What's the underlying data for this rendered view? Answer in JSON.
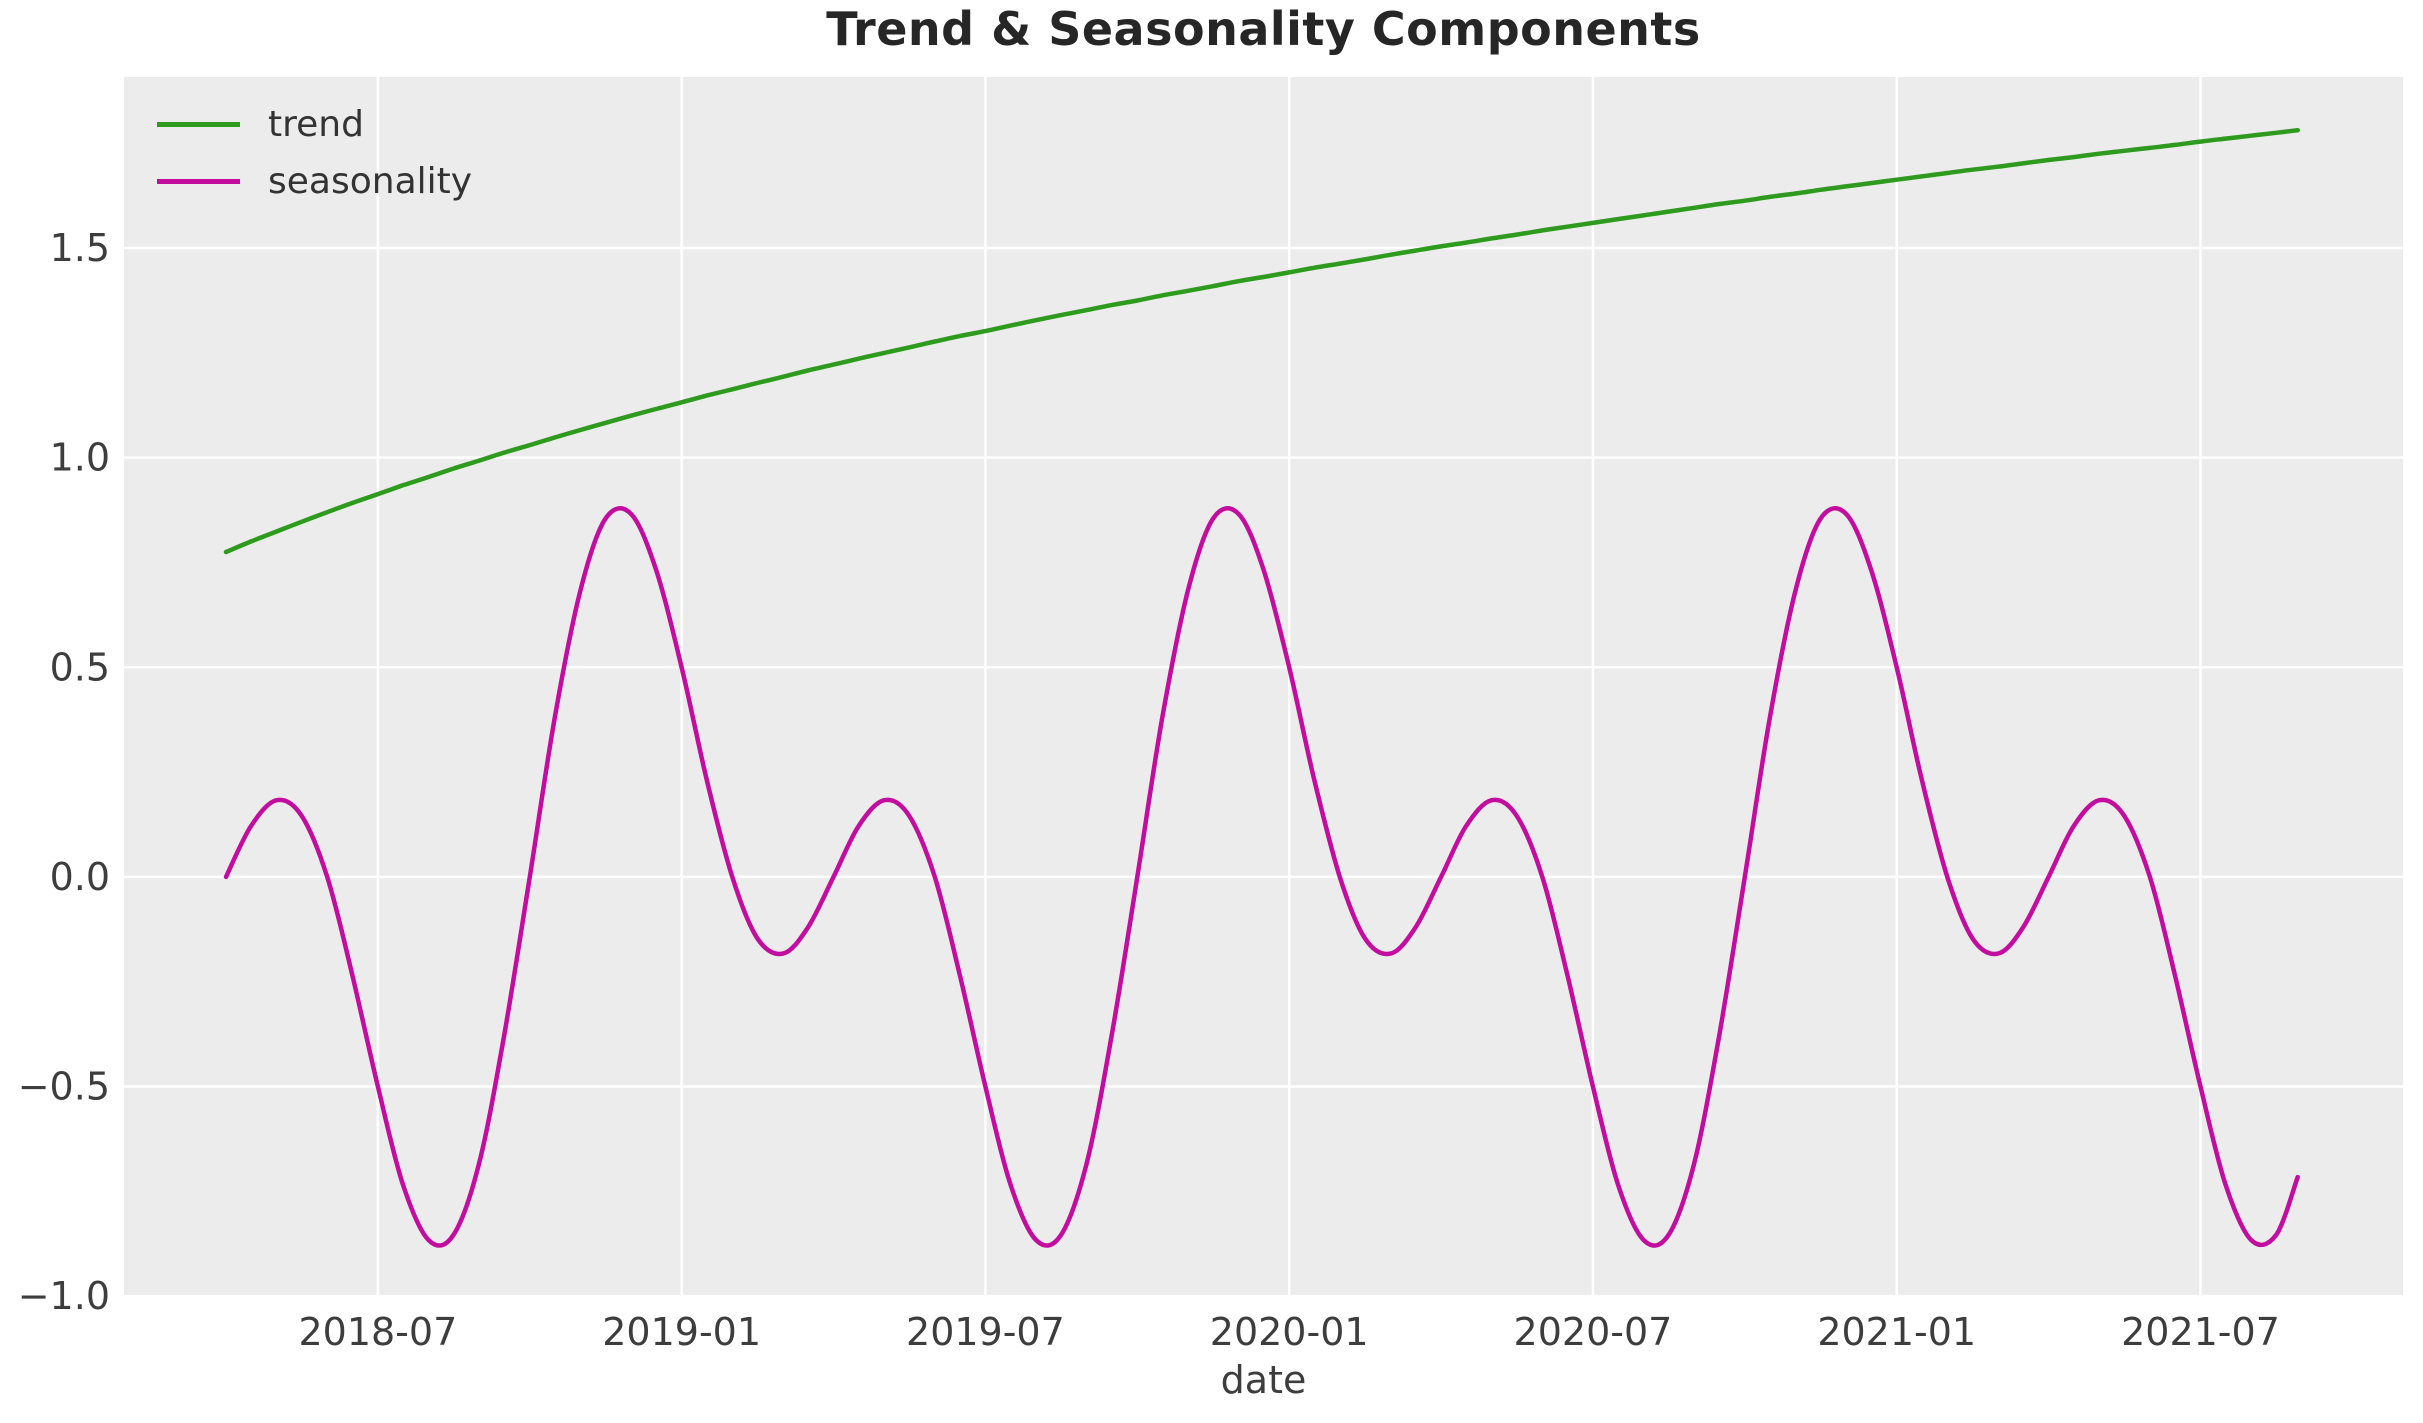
{
  "title": "Trend & Seasonality Components",
  "xlabel": "date",
  "colors": {
    "trend": "#2E9B1E",
    "seasonality": "#C20D9E",
    "axes_background": "#ECECEC",
    "gridline": "#FFFFFF",
    "tick_text": "#3D3D3D",
    "title_text": "#262626",
    "figure_background": "#FFFFFF"
  },
  "legend": {
    "position": "upper left",
    "items": [
      {
        "label": "trend",
        "color": "#2E9B1E"
      },
      {
        "label": "seasonality",
        "color": "#C20D9E"
      }
    ]
  },
  "chart_data": {
    "type": "line",
    "title": "Trend & Seasonality Components",
    "xlabel": "date",
    "ylabel": "",
    "grid": true,
    "legend_position": "upper left",
    "x_tick_labels": [
      "2018-07",
      "2019-01",
      "2019-07",
      "2020-01",
      "2020-07",
      "2021-01",
      "2021-07"
    ],
    "x_tick_dates": [
      "2018-07-01",
      "2019-01-01",
      "2019-07-01",
      "2020-01-01",
      "2020-07-01",
      "2021-01-01",
      "2021-07-01"
    ],
    "y_tick_labels": [
      "1.5",
      "1.0",
      "0.5",
      "0.0",
      "−0.5",
      "−1.0"
    ],
    "y_tick_values": [
      1.5,
      1.0,
      0.5,
      0.0,
      -0.5,
      -1.0
    ],
    "ylim": [
      -1.002,
      1.908
    ],
    "xlim_dates": [
      "2018-01-31",
      "2021-11-01"
    ],
    "x": [
      "2018-04-01",
      "2018-04-16",
      "2018-05-01",
      "2018-05-16",
      "2018-06-01",
      "2018-06-16",
      "2018-07-01",
      "2018-07-16",
      "2018-08-01",
      "2018-08-16",
      "2018-09-01",
      "2018-09-16",
      "2018-10-01",
      "2018-10-16",
      "2018-11-01",
      "2018-11-16",
      "2018-12-01",
      "2018-12-16",
      "2019-01-01",
      "2019-01-16",
      "2019-02-01",
      "2019-02-16",
      "2019-03-01",
      "2019-03-16",
      "2019-04-01",
      "2019-04-16",
      "2019-05-01",
      "2019-05-16",
      "2019-06-01",
      "2019-06-16",
      "2019-07-01",
      "2019-07-16",
      "2019-08-01",
      "2019-08-16",
      "2019-09-01",
      "2019-09-16",
      "2019-10-01",
      "2019-10-16",
      "2019-11-01",
      "2019-11-16",
      "2019-12-01",
      "2019-12-16",
      "2020-01-01",
      "2020-01-16",
      "2020-02-01",
      "2020-02-16",
      "2020-03-01",
      "2020-03-16",
      "2020-04-01",
      "2020-04-16",
      "2020-05-01",
      "2020-05-16",
      "2020-06-01",
      "2020-06-16",
      "2020-07-01",
      "2020-07-16",
      "2020-08-01",
      "2020-08-16",
      "2020-09-01",
      "2020-09-16",
      "2020-10-01",
      "2020-10-16",
      "2020-11-01",
      "2020-11-16",
      "2020-12-01",
      "2020-12-16",
      "2021-01-01",
      "2021-01-16",
      "2021-02-01",
      "2021-02-16",
      "2021-03-01",
      "2021-03-16",
      "2021-04-01",
      "2021-04-16",
      "2021-05-01",
      "2021-05-16",
      "2021-06-01",
      "2021-06-16",
      "2021-07-01",
      "2021-07-16",
      "2021-08-01",
      "2021-08-16",
      "2021-08-29"
    ],
    "series": [
      {
        "name": "trend",
        "color": "#2E9B1E",
        "values": [
          0.775,
          0.8,
          0.824,
          0.847,
          0.87,
          0.892,
          0.913,
          0.934,
          0.954,
          0.974,
          0.993,
          1.012,
          1.03,
          1.048,
          1.066,
          1.083,
          1.1,
          1.116,
          1.132,
          1.148,
          1.163,
          1.178,
          1.193,
          1.208,
          1.222,
          1.236,
          1.25,
          1.263,
          1.277,
          1.29,
          1.302,
          1.315,
          1.328,
          1.34,
          1.352,
          1.364,
          1.375,
          1.387,
          1.398,
          1.409,
          1.421,
          1.431,
          1.442,
          1.453,
          1.463,
          1.473,
          1.484,
          1.494,
          1.504,
          1.513,
          1.523,
          1.532,
          1.542,
          1.551,
          1.56,
          1.569,
          1.578,
          1.587,
          1.596,
          1.605,
          1.613,
          1.622,
          1.63,
          1.639,
          1.647,
          1.655,
          1.663,
          1.671,
          1.679,
          1.687,
          1.694,
          1.702,
          1.71,
          1.717,
          1.725,
          1.732,
          1.739,
          1.746,
          1.754,
          1.761,
          1.768,
          1.775,
          1.781
        ]
      },
      {
        "name": "seasonality",
        "color": "#C20D9E",
        "values": [
          0.0,
          0.121,
          0.183,
          0.146,
          0.0,
          -0.233,
          -0.5,
          -0.733,
          -0.866,
          -0.854,
          -0.683,
          -0.379,
          0.0,
          0.379,
          0.683,
          0.854,
          0.866,
          0.733,
          0.5,
          0.233,
          0.0,
          -0.146,
          -0.183,
          -0.121,
          0.0,
          0.121,
          0.183,
          0.146,
          0.0,
          -0.233,
          -0.5,
          -0.733,
          -0.866,
          -0.854,
          -0.683,
          -0.379,
          0.0,
          0.379,
          0.683,
          0.854,
          0.866,
          0.733,
          0.5,
          0.233,
          0.0,
          -0.146,
          -0.183,
          -0.121,
          0.0,
          0.121,
          0.183,
          0.146,
          0.0,
          -0.233,
          -0.5,
          -0.733,
          -0.866,
          -0.854,
          -0.683,
          -0.379,
          0.0,
          0.379,
          0.683,
          0.854,
          0.866,
          0.733,
          0.5,
          0.233,
          0.0,
          -0.146,
          -0.183,
          -0.121,
          0.0,
          0.121,
          0.183,
          0.146,
          0.0,
          -0.233,
          -0.5,
          -0.733,
          -0.866,
          -0.854,
          -0.716
        ]
      }
    ]
  }
}
